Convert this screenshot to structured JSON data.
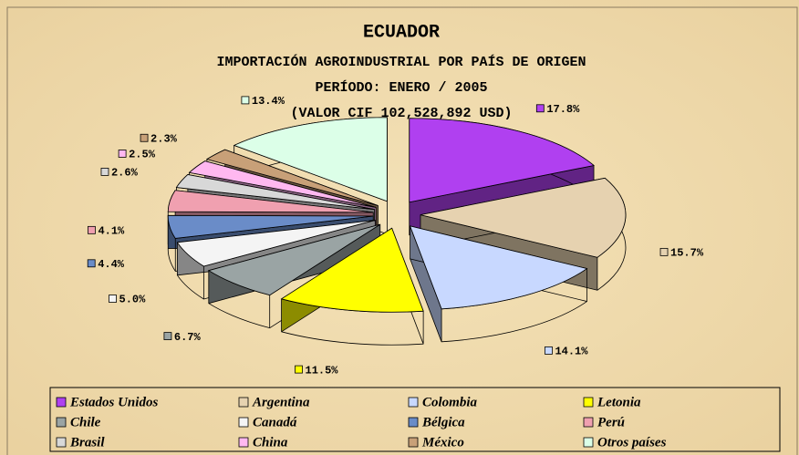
{
  "chart_data": {
    "type": "pie",
    "title": "ECUADOR",
    "subtitle": [
      "IMPORTACIÓN AGROINDUSTRIAL POR PAÍS DE ORIGEN",
      "PERÍODO: ENERO / 2005",
      "(VALOR CIF 102,528,892 USD)"
    ],
    "categories": [
      "Estados Unidos",
      "Argentina",
      "Colombia",
      "Letonia",
      "Chile",
      "Canadá",
      "Bélgica",
      "Perú",
      "Brasil",
      "China",
      "México",
      "Otros países"
    ],
    "values": [
      17.8,
      15.7,
      14.1,
      11.5,
      6.7,
      5.0,
      4.4,
      4.1,
      2.6,
      2.5,
      2.3,
      13.4
    ],
    "value_labels": [
      "17.8%",
      "15.7%",
      "14.1%",
      "11.5%",
      "6.7%",
      "5.0%",
      "4.4%",
      "4.1%",
      "2.6%",
      "2.5%",
      "2.3%",
      "13.4%"
    ],
    "colors": [
      "#b040f0",
      "#e6d2b0",
      "#c8d8ff",
      "#ffff00",
      "#9aa4a4",
      "#f4f4f4",
      "#6a8cc8",
      "#f0a0b0",
      "#d8d8d8",
      "#ffb8f0",
      "#c8a078",
      "#dcffe8"
    ],
    "legend": "bottom"
  }
}
